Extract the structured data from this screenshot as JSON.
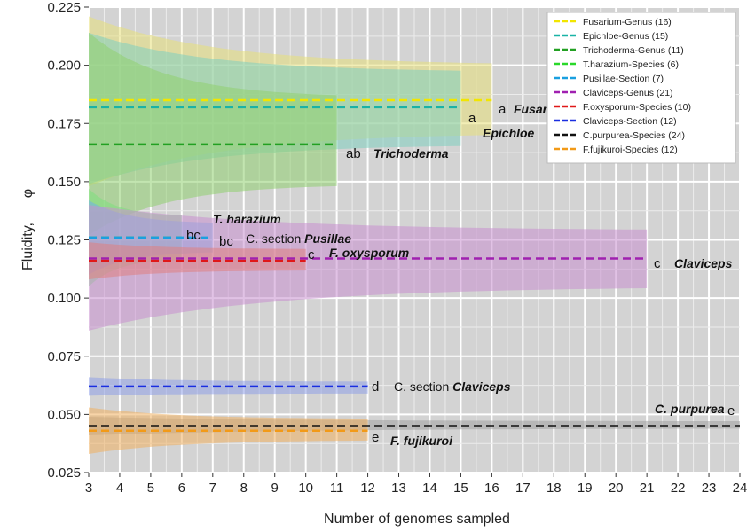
{
  "chart_data": {
    "type": "line",
    "xlabel": "Number of genomes sampled",
    "ylabel": "Fluidity,",
    "ylabel_symbol": "φ",
    "xlim": [
      3,
      24
    ],
    "ylim": [
      0.025,
      0.225
    ],
    "x_ticks": [
      "3",
      "4",
      "5",
      "6",
      "7",
      "8",
      "9",
      "10",
      "11",
      "12",
      "13",
      "14",
      "15",
      "16",
      "17",
      "18",
      "19",
      "20",
      "21",
      "22",
      "23",
      "24"
    ],
    "y_ticks": [
      "0.025",
      "0.050",
      "0.075",
      "0.100",
      "0.125",
      "0.150",
      "0.175",
      "0.200",
      "0.225"
    ],
    "grid": true,
    "legend_position": "top-right",
    "series": [
      {
        "name": "Fusarium-Genus (16)",
        "color": "#f2e600",
        "band_color": "#e8e07a",
        "x_end": 16,
        "fluidity": 0.185,
        "band_start": [
          0.148,
          0.221
        ],
        "band_end": [
          0.171,
          0.2
        ],
        "letter": "a",
        "label_prefix": "",
        "label_italic": "Fusarium"
      },
      {
        "name": "Epichloe-Genus (15)",
        "color": "#19b3a6",
        "band_color": "#7fd0c0",
        "x_end": 15,
        "fluidity": 0.182,
        "band_start": [
          0.149,
          0.214
        ],
        "band_end": [
          0.166,
          0.197
        ],
        "letter": "a",
        "label_prefix": "",
        "label_italic": "Epichloe"
      },
      {
        "name": "Trichoderma-Genus (11)",
        "color": "#22a022",
        "band_color": "#8fd070",
        "x_end": 11,
        "fluidity": 0.166,
        "band_start": [
          0.127,
          0.214
        ],
        "band_end": [
          0.149,
          0.186
        ],
        "letter": "ab",
        "label_prefix": "",
        "label_italic": "Trichoderma"
      },
      {
        "name": "T.harazium-Species (6)",
        "color": "#2ad82a",
        "band_color": "#7ee07e",
        "x_end": 6,
        "fluidity": 0.126,
        "band_start": [
          0.105,
          0.147
        ],
        "band_end": [
          0.117,
          0.135
        ],
        "letter": "bc",
        "label_prefix": "",
        "label_italic": "T. harazium"
      },
      {
        "name": "Pusillae-Section (7)",
        "color": "#1aa0e0",
        "band_color": "#6fb0e8",
        "x_end": 7,
        "fluidity": 0.126,
        "band_start": [
          0.11,
          0.142
        ],
        "band_end": [
          0.12,
          0.132
        ],
        "letter": "bc",
        "label_prefix": "C. section ",
        "label_italic": "Pusillae"
      },
      {
        "name": "Claviceps-Genus (21)",
        "color": "#a020b0",
        "band_color": "#c890d0",
        "x_end": 21,
        "fluidity": 0.117,
        "band_start": [
          0.086,
          0.14
        ],
        "band_end": [
          0.105,
          0.129
        ],
        "letter": "c",
        "label_prefix": "",
        "label_italic": "Claviceps"
      },
      {
        "name": "F.oxysporum-Species (10)",
        "color": "#e01818",
        "band_color": "#e08080",
        "x_end": 10,
        "fluidity": 0.116,
        "band_start": [
          0.108,
          0.124
        ],
        "band_end": [
          0.112,
          0.121
        ],
        "letter": "c",
        "label_prefix": "",
        "label_italic": "F. oxysporum"
      },
      {
        "name": "Claviceps-Section (12)",
        "color": "#1a2ee0",
        "band_color": "#8fa0e8",
        "x_end": 12,
        "fluidity": 0.062,
        "band_start": [
          0.058,
          0.066
        ],
        "band_end": [
          0.059,
          0.064
        ],
        "letter": "d",
        "label_prefix": "C. section ",
        "label_italic": "Claviceps"
      },
      {
        "name": "C.purpurea-Species (24)",
        "color": "#111111",
        "band_color": "#a0a0a0",
        "x_end": 24,
        "fluidity": 0.045,
        "band_start": [
          0.041,
          0.049
        ],
        "band_end": [
          0.044,
          0.047
        ],
        "letter": "e",
        "label_prefix": "",
        "label_italic": "C. purpurea"
      },
      {
        "name": "F.fujikuroi-Species (12)",
        "color": "#f29a18",
        "band_color": "#f0b060",
        "x_end": 12,
        "fluidity": 0.043,
        "band_start": [
          0.033,
          0.053
        ],
        "band_end": [
          0.039,
          0.048
        ],
        "letter": "e",
        "label_prefix": "",
        "label_italic": "F. fujikuroi"
      }
    ]
  }
}
